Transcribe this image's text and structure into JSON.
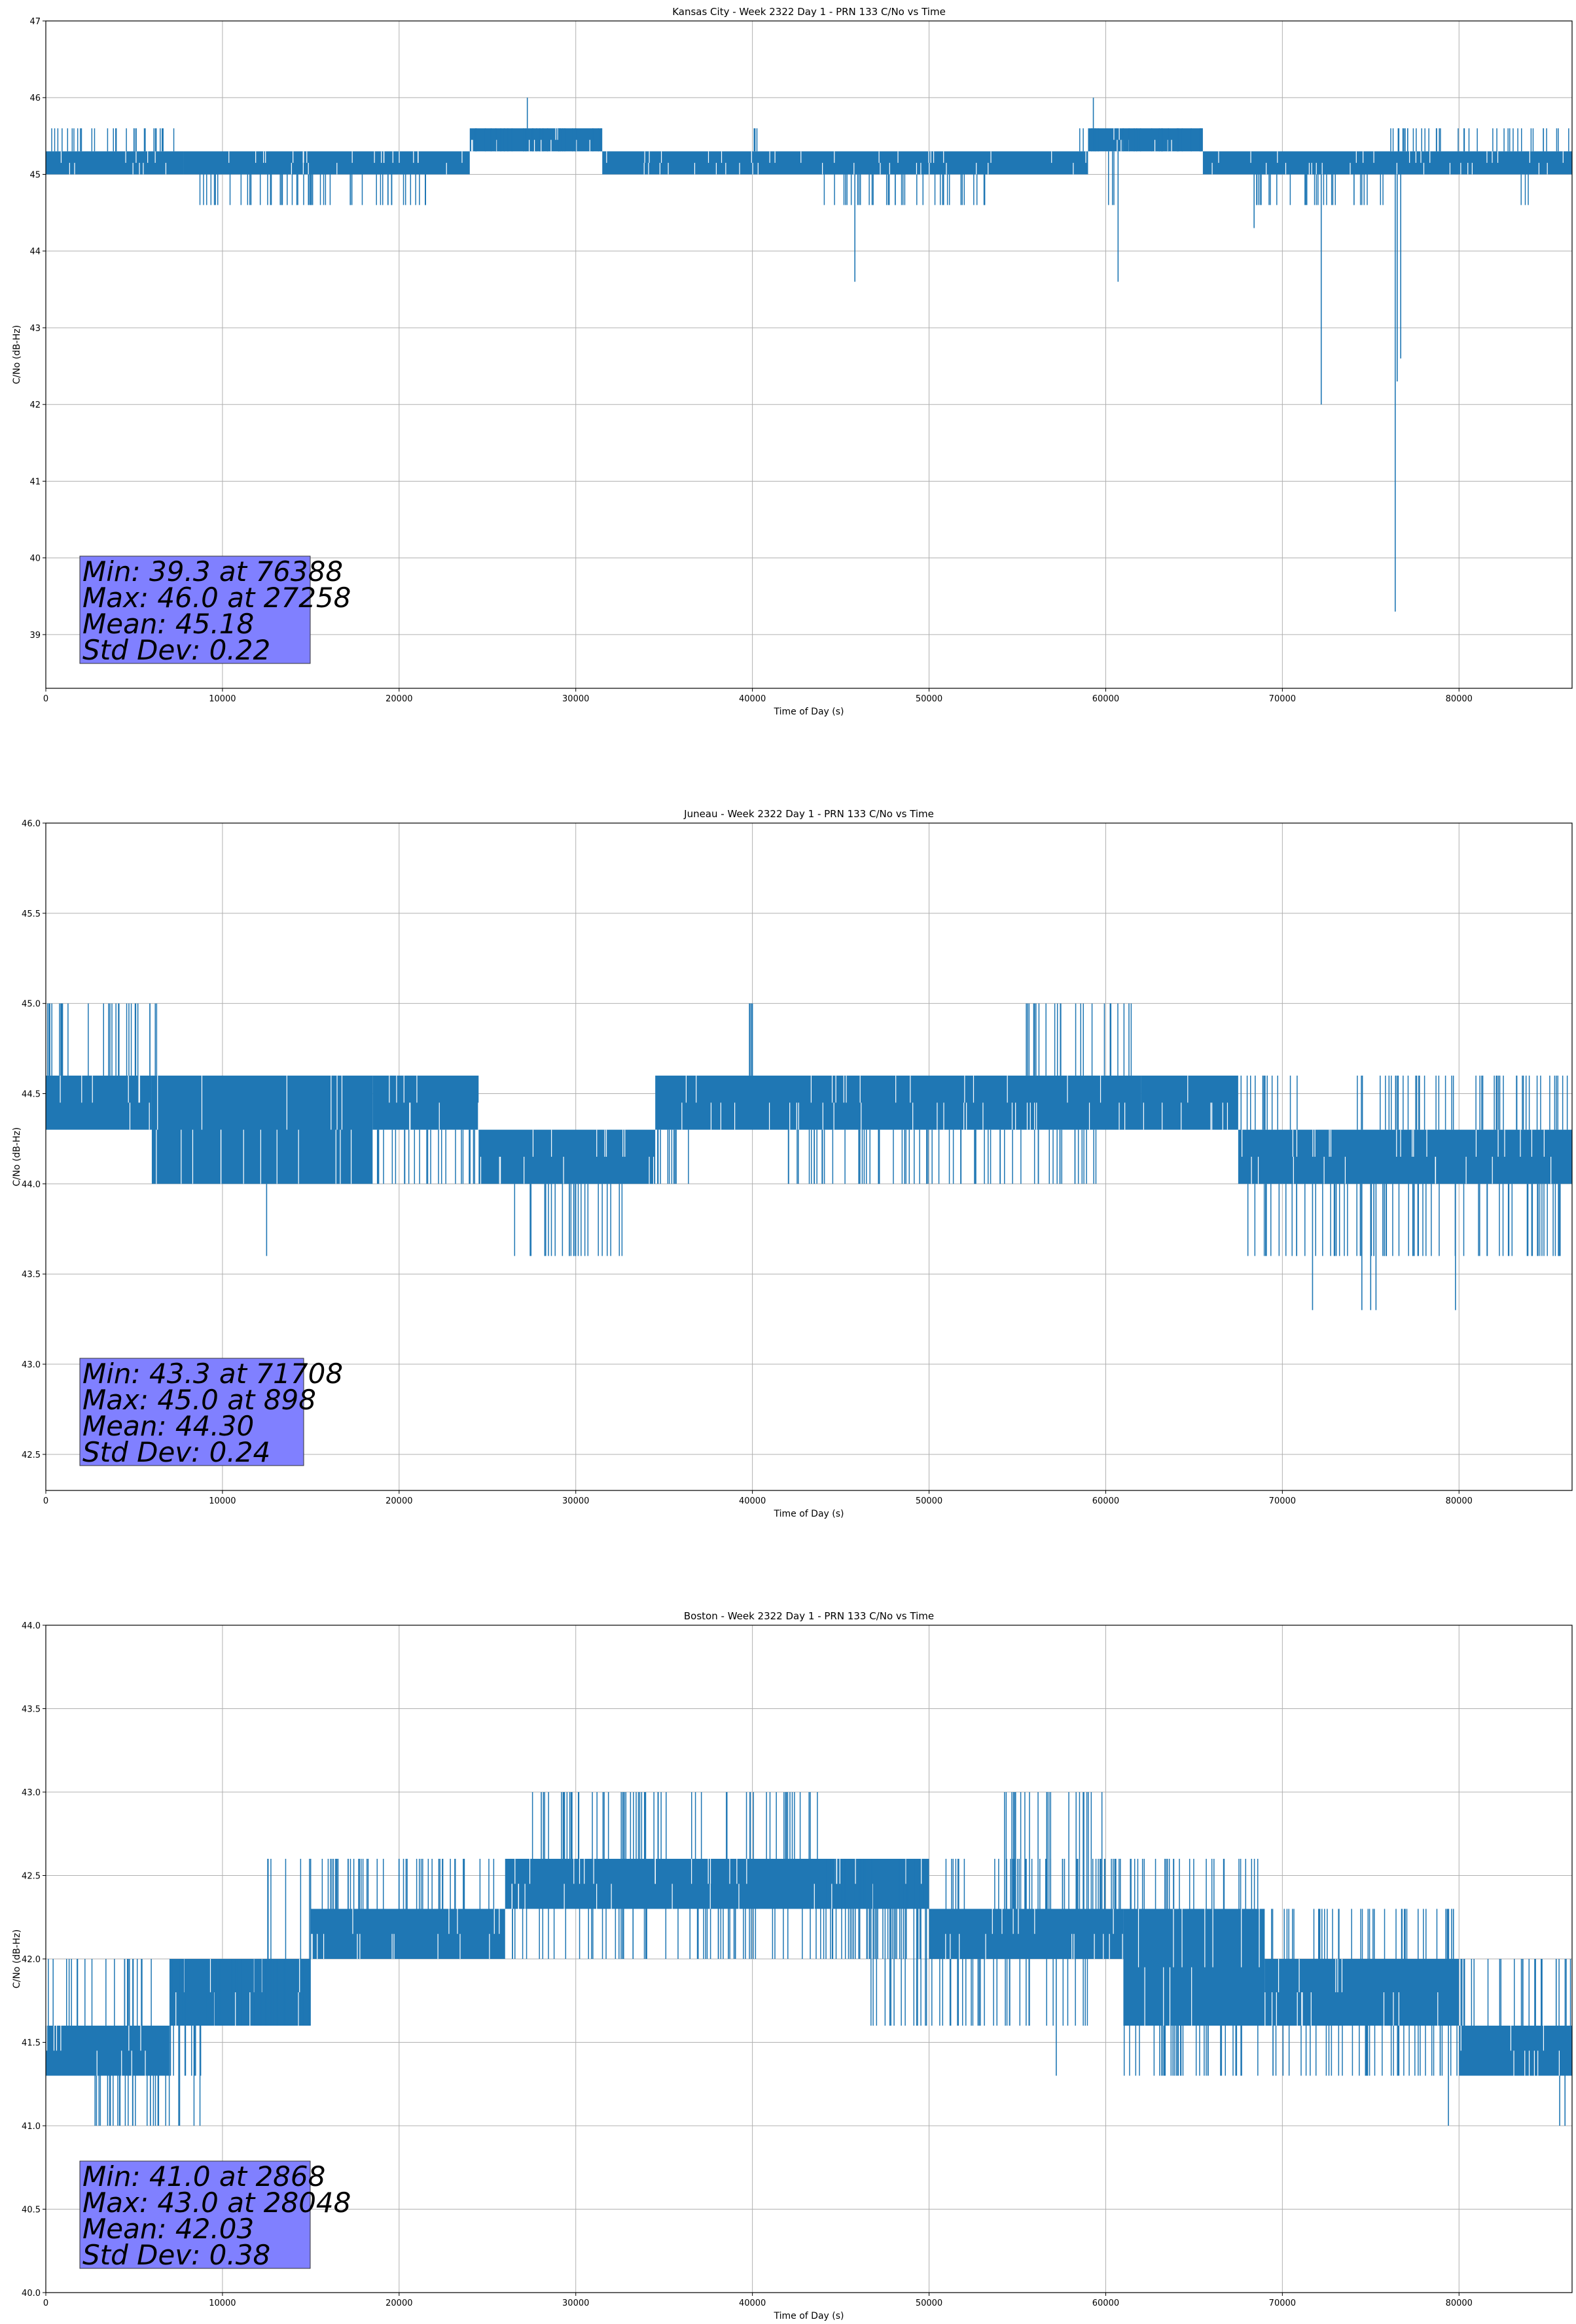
{
  "chart_data": [
    {
      "type": "line",
      "title": "Kansas City - Week 2322 Day 1 - PRN 133 C/No vs Time",
      "xlabel": "Time of Day (s)",
      "ylabel": "C/No (dB-Hz)",
      "xlim": [
        0,
        86400
      ],
      "ylim": [
        38.3,
        47
      ],
      "xticks": [
        "0",
        "10000",
        "20000",
        "30000",
        "40000",
        "50000",
        "60000",
        "70000",
        "80000"
      ],
      "yticks": [
        "39",
        "40",
        "41",
        "42",
        "43",
        "44",
        "45",
        "46",
        "47"
      ],
      "grid": true,
      "color": "#1f77b4",
      "stats_box": [
        "Min: 39.3 at 76388",
        "Max: 46.0 at 27258",
        "Mean: 45.18",
        "Std Dev: 0.22"
      ],
      "band_segments": [
        {
          "x": [
            0,
            7800
          ],
          "y": [
            45.0,
            45.3
          ]
        },
        {
          "x": [
            7800,
            24000
          ],
          "y": [
            45.0,
            45.3
          ]
        },
        {
          "x": [
            24000,
            31500
          ],
          "y": [
            45.3,
            45.6
          ]
        },
        {
          "x": [
            31500,
            59000
          ],
          "y": [
            45.0,
            45.3
          ]
        },
        {
          "x": [
            59000,
            65500
          ],
          "y": [
            45.3,
            45.6
          ]
        },
        {
          "x": [
            65500,
            86400
          ],
          "y": [
            45.0,
            45.3
          ]
        }
      ],
      "upper_spikes": [
        {
          "x": [
            0,
            8000
          ],
          "y": 45.6
        },
        {
          "x": [
            24000,
            31500
          ],
          "y": 45.6
        },
        {
          "x": [
            40000,
            40300
          ],
          "y": 45.6
        },
        {
          "x": [
            58500,
            65500
          ],
          "y": 45.6
        },
        {
          "x": [
            76000,
            86400
          ],
          "y": 45.6
        }
      ],
      "lower_spikes": [
        {
          "x": [
            8500,
            22000
          ],
          "y": 44.6
        },
        {
          "x": [
            44000,
            53500
          ],
          "y": 44.6
        },
        {
          "x": [
            60000,
            60500
          ],
          "y": 44.6
        },
        {
          "x": [
            68500,
            76000
          ],
          "y": 44.6
        },
        {
          "x": [
            83500,
            84200
          ],
          "y": 44.6
        }
      ],
      "extreme_spikes": [
        {
          "x": 27258,
          "y": 46.0
        },
        {
          "x": 59300,
          "y": 46.0
        },
        {
          "x": 45800,
          "y": 43.6
        },
        {
          "x": 60700,
          "y": 43.6
        },
        {
          "x": 68400,
          "y": 44.3
        },
        {
          "x": 72200,
          "y": 42.0
        },
        {
          "x": 76388,
          "y": 39.3
        },
        {
          "x": 76500,
          "y": 42.3
        },
        {
          "x": 76700,
          "y": 42.6
        }
      ]
    },
    {
      "type": "line",
      "title": "Juneau - Week 2322 Day 1 - PRN 133 C/No vs Time",
      "xlabel": "Time of Day (s)",
      "ylabel": "C/No (dB-Hz)",
      "xlim": [
        0,
        86400
      ],
      "ylim": [
        42.3,
        46.0
      ],
      "xticks": [
        "0",
        "10000",
        "20000",
        "30000",
        "40000",
        "50000",
        "60000",
        "70000",
        "80000"
      ],
      "yticks": [
        "42.5",
        "43.0",
        "43.5",
        "44.0",
        "44.5",
        "45.0",
        "45.5",
        "46.0"
      ],
      "grid": true,
      "color": "#1f77b4",
      "stats_box": [
        "Min: 43.3 at 71708",
        "Max: 45.0 at 898",
        "Mean: 44.30",
        "Std Dev: 0.24"
      ],
      "band_segments": [
        {
          "x": [
            0,
            6000
          ],
          "y": [
            44.3,
            44.6
          ]
        },
        {
          "x": [
            6000,
            18500
          ],
          "y": [
            44.0,
            44.6
          ]
        },
        {
          "x": [
            18500,
            24500
          ],
          "y": [
            44.3,
            44.6
          ]
        },
        {
          "x": [
            24500,
            34500
          ],
          "y": [
            44.0,
            44.3
          ]
        },
        {
          "x": [
            34500,
            62000
          ],
          "y": [
            44.3,
            44.6
          ]
        },
        {
          "x": [
            62000,
            67500
          ],
          "y": [
            44.3,
            44.6
          ]
        },
        {
          "x": [
            67500,
            86400
          ],
          "y": [
            44.0,
            44.3
          ]
        }
      ],
      "upper_spikes": [
        {
          "x": [
            0,
            7000
          ],
          "y": 45.0
        },
        {
          "x": [
            39800,
            40100
          ],
          "y": 45.0
        },
        {
          "x": [
            55500,
            62000
          ],
          "y": 45.0
        },
        {
          "x": [
            67500,
            71000
          ],
          "y": 44.6
        },
        {
          "x": [
            74000,
            86400
          ],
          "y": 44.6
        }
      ],
      "lower_spikes": [
        {
          "x": [
            6500,
            36500
          ],
          "y": 44.0
        },
        {
          "x": [
            26000,
            33000
          ],
          "y": 43.6
        },
        {
          "x": [
            42000,
            60000
          ],
          "y": 44.0
        },
        {
          "x": [
            67500,
            86400
          ],
          "y": 43.6
        }
      ],
      "extreme_spikes": [
        {
          "x": 898,
          "y": 45.0
        },
        {
          "x": 12500,
          "y": 43.6
        },
        {
          "x": 40000,
          "y": 45.0
        },
        {
          "x": 71708,
          "y": 43.3
        },
        {
          "x": 74500,
          "y": 43.3
        },
        {
          "x": 75000,
          "y": 43.3
        },
        {
          "x": 75300,
          "y": 43.3
        },
        {
          "x": 79800,
          "y": 43.3
        }
      ]
    },
    {
      "type": "line",
      "title": "Boston - Week 2322 Day 1 - PRN 133 C/No vs Time",
      "xlabel": "Time of Day (s)",
      "ylabel": "C/No (dB-Hz)",
      "xlim": [
        0,
        86400
      ],
      "ylim": [
        40.0,
        44.0
      ],
      "xticks": [
        "0",
        "10000",
        "20000",
        "30000",
        "40000",
        "50000",
        "60000",
        "70000",
        "80000"
      ],
      "yticks": [
        "40.0",
        "40.5",
        "41.0",
        "41.5",
        "42.0",
        "42.5",
        "43.0",
        "43.5",
        "44.0"
      ],
      "grid": true,
      "color": "#1f77b4",
      "stats_box": [
        "Min: 41.0 at 2868",
        "Max: 43.0 at 28048",
        "Mean: 42.03",
        "Std Dev: 0.38"
      ],
      "band_segments": [
        {
          "x": [
            0,
            7000
          ],
          "y": [
            41.3,
            41.6
          ]
        },
        {
          "x": [
            7000,
            15000
          ],
          "y": [
            41.6,
            42.0
          ]
        },
        {
          "x": [
            15000,
            26000
          ],
          "y": [
            42.0,
            42.3
          ]
        },
        {
          "x": [
            26000,
            50000
          ],
          "y": [
            42.3,
            42.6
          ]
        },
        {
          "x": [
            50000,
            61000
          ],
          "y": [
            42.0,
            42.3
          ]
        },
        {
          "x": [
            61000,
            69000
          ],
          "y": [
            41.6,
            42.3
          ]
        },
        {
          "x": [
            69000,
            80000
          ],
          "y": [
            41.6,
            42.0
          ]
        },
        {
          "x": [
            80000,
            86400
          ],
          "y": [
            41.3,
            41.6
          ]
        }
      ],
      "upper_spikes": [
        {
          "x": [
            0,
            6000
          ],
          "y": 42.0
        },
        {
          "x": [
            7000,
            15000
          ],
          "y": 42.0
        },
        {
          "x": [
            12500,
            26500
          ],
          "y": 42.6
        },
        {
          "x": [
            27500,
            44000
          ],
          "y": 43.0
        },
        {
          "x": [
            44000,
            60500
          ],
          "y": 42.6
        },
        {
          "x": [
            54000,
            60000
          ],
          "y": 43.0
        },
        {
          "x": [
            60500,
            69000
          ],
          "y": 42.6
        },
        {
          "x": [
            69000,
            80000
          ],
          "y": 42.3
        },
        {
          "x": [
            80000,
            86400
          ],
          "y": 42.0
        }
      ],
      "lower_spikes": [
        {
          "x": [
            2500,
            9500
          ],
          "y": 41.0
        },
        {
          "x": [
            7000,
            10000
          ],
          "y": 41.3
        },
        {
          "x": [
            26000,
            50000
          ],
          "y": 42.0
        },
        {
          "x": [
            46500,
            59000
          ],
          "y": 41.6
        },
        {
          "x": [
            61000,
            86400
          ],
          "y": 41.3
        }
      ],
      "extreme_spikes": [
        {
          "x": 2868,
          "y": 41.0
        },
        {
          "x": 3500,
          "y": 41.0
        },
        {
          "x": 4200,
          "y": 41.0
        },
        {
          "x": 28048,
          "y": 43.0
        },
        {
          "x": 57200,
          "y": 41.3
        },
        {
          "x": 79400,
          "y": 41.0
        },
        {
          "x": 85700,
          "y": 41.0
        },
        {
          "x": 86000,
          "y": 41.0
        }
      ]
    }
  ]
}
